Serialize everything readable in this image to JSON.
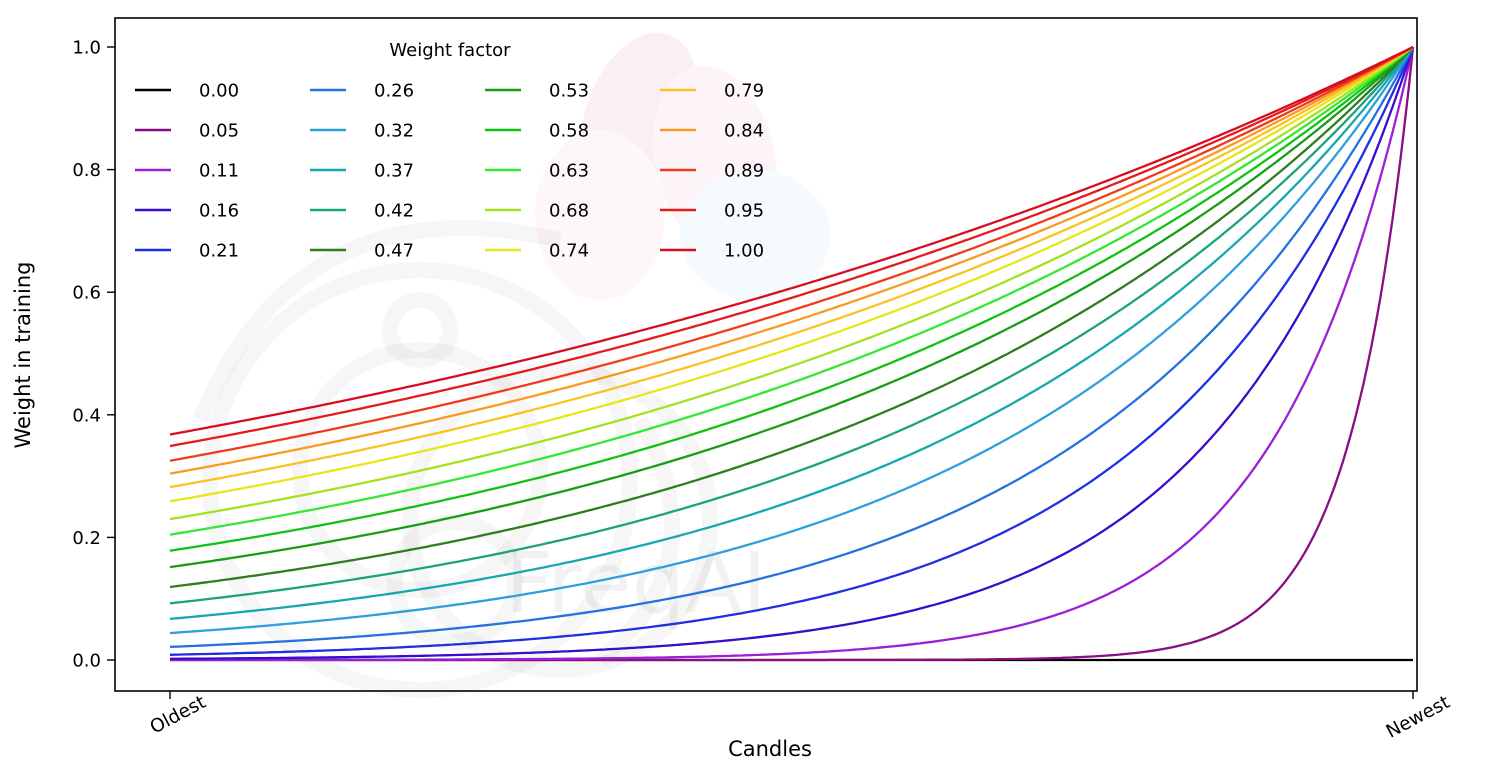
{
  "figure": {
    "watermark_text": "FreqAI",
    "background": "#ffffff"
  },
  "chart_data": {
    "type": "line",
    "title": "",
    "xlabel": "Candles",
    "ylabel": "Weight in training",
    "x_axis": {
      "tick_labels": [
        "Oldest",
        "Newest"
      ],
      "description": "candle age normalized 0 (Oldest) to 1 (Newest)"
    },
    "y_axis": {
      "tick_labels": [
        "0.0",
        "0.2",
        "0.4",
        "0.6",
        "0.8",
        "1.0"
      ],
      "tick_values": [
        0,
        0.2,
        0.4,
        0.6,
        0.8,
        1.0
      ],
      "range": [
        0,
        1
      ]
    },
    "grid": false,
    "legend": {
      "title": "Weight factor",
      "position": "upper left",
      "ncols": 4,
      "order": "column-major"
    },
    "formula": "weight(t) = exp(-(1 - t) / weight_factor) for t in [0,1]; weight_factor = 0 gives constant weight 0",
    "series": [
      {
        "label": "0.00",
        "weight_factor": 0.0,
        "color": "#000000",
        "y_oldest": 0.0,
        "y_newest": 0.0
      },
      {
        "label": "0.05",
        "weight_factor": 0.05,
        "color": "#8a0d84",
        "y_oldest": 0.0,
        "y_newest": 1.0
      },
      {
        "label": "0.11",
        "weight_factor": 0.11,
        "color": "#9b1fd6",
        "y_oldest": 0.0001,
        "y_newest": 1.0
      },
      {
        "label": "0.16",
        "weight_factor": 0.16,
        "color": "#3a0ccc",
        "y_oldest": 0.002,
        "y_newest": 1.0
      },
      {
        "label": "0.21",
        "weight_factor": 0.21,
        "color": "#1f2fe3",
        "y_oldest": 0.009,
        "y_newest": 1.0
      },
      {
        "label": "0.26",
        "weight_factor": 0.26,
        "color": "#2472e0",
        "y_oldest": 0.021,
        "y_newest": 1.0
      },
      {
        "label": "0.32",
        "weight_factor": 0.32,
        "color": "#2f9fdd",
        "y_oldest": 0.044,
        "y_newest": 1.0
      },
      {
        "label": "0.37",
        "weight_factor": 0.37,
        "color": "#16a8ad",
        "y_oldest": 0.067,
        "y_newest": 1.0
      },
      {
        "label": "0.42",
        "weight_factor": 0.42,
        "color": "#1ba379",
        "y_oldest": 0.092,
        "y_newest": 1.0
      },
      {
        "label": "0.47",
        "weight_factor": 0.47,
        "color": "#2e7d1e",
        "y_oldest": 0.119,
        "y_newest": 1.0
      },
      {
        "label": "0.53",
        "weight_factor": 0.53,
        "color": "#169e16",
        "y_oldest": 0.152,
        "y_newest": 1.0
      },
      {
        "label": "0.58",
        "weight_factor": 0.58,
        "color": "#12c112",
        "y_oldest": 0.178,
        "y_newest": 1.0
      },
      {
        "label": "0.63",
        "weight_factor": 0.63,
        "color": "#33e833",
        "y_oldest": 0.204,
        "y_newest": 1.0
      },
      {
        "label": "0.68",
        "weight_factor": 0.68,
        "color": "#a6e11f",
        "y_oldest": 0.23,
        "y_newest": 1.0
      },
      {
        "label": "0.74",
        "weight_factor": 0.74,
        "color": "#e6e619",
        "y_oldest": 0.259,
        "y_newest": 1.0
      },
      {
        "label": "0.79",
        "weight_factor": 0.79,
        "color": "#fac223",
        "y_oldest": 0.282,
        "y_newest": 1.0
      },
      {
        "label": "0.84",
        "weight_factor": 0.84,
        "color": "#f89b20",
        "y_oldest": 0.304,
        "y_newest": 1.0
      },
      {
        "label": "0.89",
        "weight_factor": 0.89,
        "color": "#ef3a1c",
        "y_oldest": 0.325,
        "y_newest": 1.0
      },
      {
        "label": "0.95",
        "weight_factor": 0.95,
        "color": "#e41a1c",
        "y_oldest": 0.349,
        "y_newest": 1.0
      },
      {
        "label": "1.00",
        "weight_factor": 1.0,
        "color": "#d60e1f",
        "y_oldest": 0.368,
        "y_newest": 1.0
      }
    ]
  }
}
